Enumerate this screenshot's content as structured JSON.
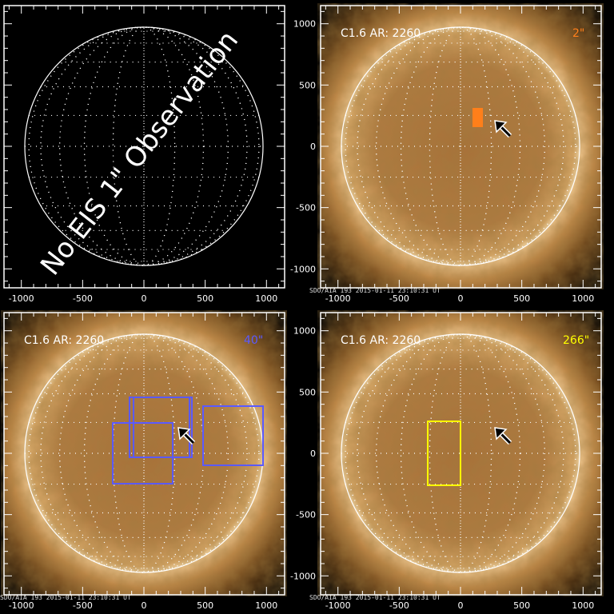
{
  "figure": {
    "panels": [
      {
        "id": "p1",
        "message": "No EIS 1\" Observation",
        "show_sun": false,
        "x_ticks": [
          "-1000",
          "-500",
          "0",
          "500",
          "1000"
        ],
        "y_ticks": [
          "1000",
          "500",
          "0",
          "-500",
          "-1000"
        ]
      },
      {
        "id": "p2",
        "label": "C1.6 AR: 2260",
        "slit": "2\"",
        "slit_color": "#ff7f1a",
        "show_sun": true,
        "caption": "SDO/AIA 193  2015-01-11 23:10:31 UT",
        "x_ticks": [
          "-1000",
          "-500",
          "0",
          "500",
          "1000"
        ],
        "y_ticks": [
          "1000",
          "500",
          "0",
          "-500",
          "-1000"
        ]
      },
      {
        "id": "p3",
        "label": "C1.6 AR: 2260",
        "slit": "40\"",
        "slit_color": "#5a5aff",
        "show_sun": true,
        "caption": "SDO/AIA 193  2015-01-11 23:10:31 UT",
        "x_ticks": [
          "-1000",
          "-500",
          "0",
          "500",
          "1000"
        ],
        "y_ticks": [
          "1000",
          "500",
          "0",
          "-500",
          "-1000"
        ]
      },
      {
        "id": "p4",
        "label": "C1.6 AR: 2260",
        "slit": "266\"",
        "slit_color": "#ffff00",
        "show_sun": true,
        "caption": "SDO/AIA 193  2015-01-11 23:10:31 UT",
        "x_ticks": [
          "-1000",
          "-500",
          "0",
          "500",
          "1000"
        ],
        "y_ticks": [
          "1000",
          "500",
          "0",
          "-500",
          "-1000"
        ]
      }
    ],
    "axis_range_arcsec": [
      -1150,
      1150
    ],
    "sun_color": "#b8803c"
  }
}
